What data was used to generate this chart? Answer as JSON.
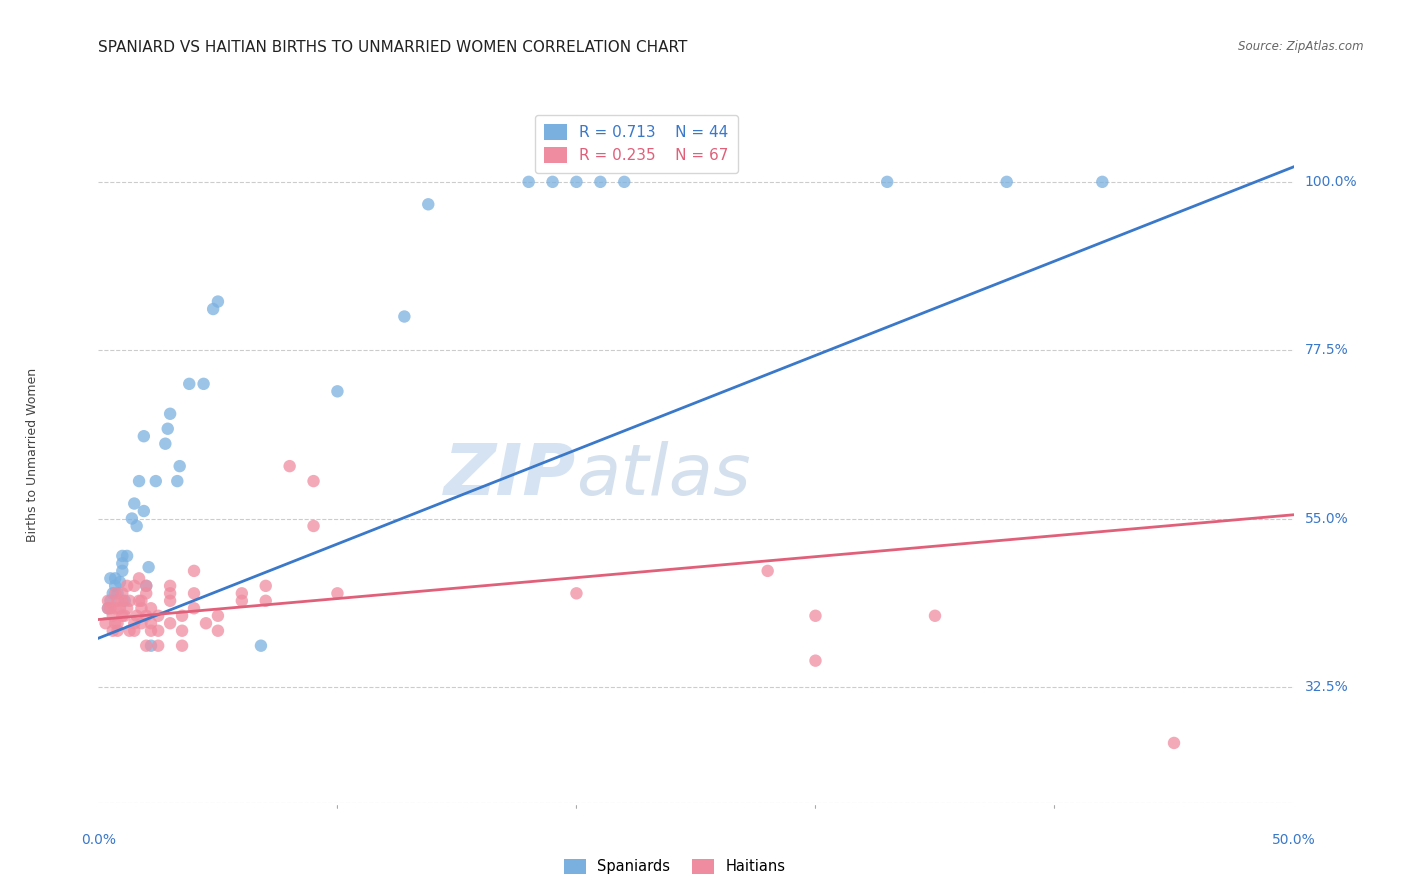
{
  "title": "SPANIARD VS HAITIAN BIRTHS TO UNMARRIED WOMEN CORRELATION CHART",
  "source": "Source: ZipAtlas.com",
  "ylabel": "Births to Unmarried Women",
  "ytick_labels": [
    "32.5%",
    "55.0%",
    "77.5%",
    "100.0%"
  ],
  "ytick_values": [
    0.325,
    0.55,
    0.775,
    1.0
  ],
  "xtick_labels": [
    "0.0%",
    "50.0%"
  ],
  "xtick_values": [
    0.0,
    0.5
  ],
  "xlim": [
    0.0,
    0.5
  ],
  "ylim": [
    0.17,
    1.1
  ],
  "legend_blue_r": "R = 0.713",
  "legend_blue_n": "N = 44",
  "legend_pink_r": "R = 0.235",
  "legend_pink_n": "N = 67",
  "legend_label_blue": "Spaniards",
  "legend_label_pink": "Haitians",
  "blue_color": "#7ab0e0",
  "pink_color": "#f08ca0",
  "blue_line_color": "#3a78c9",
  "pink_line_color": "#e0607a",
  "watermark_zip": "ZIP",
  "watermark_atlas": "atlas",
  "grid_color": "#cccccc",
  "bg_color": "#ffffff",
  "title_fontsize": 11,
  "axis_label_fontsize": 9,
  "tick_fontsize": 10,
  "marker_size": 80,
  "line_width": 2.0,
  "blue_line_x": [
    0.0,
    0.5
  ],
  "blue_line_y": [
    0.39,
    1.02
  ],
  "pink_line_x": [
    0.0,
    0.5
  ],
  "pink_line_y": [
    0.415,
    0.555
  ],
  "spaniard_points": [
    [
      0.004,
      0.43
    ],
    [
      0.005,
      0.44
    ],
    [
      0.005,
      0.47
    ],
    [
      0.006,
      0.45
    ],
    [
      0.007,
      0.46
    ],
    [
      0.007,
      0.47
    ],
    [
      0.008,
      0.45
    ],
    [
      0.009,
      0.465
    ],
    [
      0.01,
      0.48
    ],
    [
      0.01,
      0.5
    ],
    [
      0.01,
      0.49
    ],
    [
      0.011,
      0.44
    ],
    [
      0.012,
      0.5
    ],
    [
      0.014,
      0.55
    ],
    [
      0.015,
      0.57
    ],
    [
      0.016,
      0.54
    ],
    [
      0.017,
      0.6
    ],
    [
      0.019,
      0.56
    ],
    [
      0.019,
      0.66
    ],
    [
      0.02,
      0.46
    ],
    [
      0.021,
      0.485
    ],
    [
      0.022,
      0.38
    ],
    [
      0.024,
      0.6
    ],
    [
      0.028,
      0.65
    ],
    [
      0.029,
      0.67
    ],
    [
      0.03,
      0.69
    ],
    [
      0.033,
      0.6
    ],
    [
      0.034,
      0.62
    ],
    [
      0.038,
      0.73
    ],
    [
      0.044,
      0.73
    ],
    [
      0.048,
      0.83
    ],
    [
      0.05,
      0.84
    ],
    [
      0.068,
      0.38
    ],
    [
      0.1,
      0.72
    ],
    [
      0.128,
      0.82
    ],
    [
      0.138,
      0.97
    ],
    [
      0.18,
      1.0
    ],
    [
      0.19,
      1.0
    ],
    [
      0.2,
      1.0
    ],
    [
      0.21,
      1.0
    ],
    [
      0.22,
      1.0
    ],
    [
      0.33,
      1.0
    ],
    [
      0.38,
      1.0
    ],
    [
      0.42,
      1.0
    ]
  ],
  "haitian_points": [
    [
      0.003,
      0.41
    ],
    [
      0.004,
      0.43
    ],
    [
      0.004,
      0.44
    ],
    [
      0.005,
      0.43
    ],
    [
      0.006,
      0.4
    ],
    [
      0.006,
      0.42
    ],
    [
      0.007,
      0.41
    ],
    [
      0.007,
      0.43
    ],
    [
      0.007,
      0.45
    ],
    [
      0.008,
      0.4
    ],
    [
      0.008,
      0.41
    ],
    [
      0.008,
      0.44
    ],
    [
      0.009,
      0.43
    ],
    [
      0.01,
      0.42
    ],
    [
      0.01,
      0.44
    ],
    [
      0.01,
      0.45
    ],
    [
      0.011,
      0.42
    ],
    [
      0.012,
      0.43
    ],
    [
      0.012,
      0.46
    ],
    [
      0.013,
      0.4
    ],
    [
      0.013,
      0.44
    ],
    [
      0.015,
      0.4
    ],
    [
      0.015,
      0.41
    ],
    [
      0.015,
      0.46
    ],
    [
      0.016,
      0.42
    ],
    [
      0.017,
      0.44
    ],
    [
      0.017,
      0.47
    ],
    [
      0.018,
      0.41
    ],
    [
      0.018,
      0.43
    ],
    [
      0.018,
      0.44
    ],
    [
      0.02,
      0.38
    ],
    [
      0.02,
      0.42
    ],
    [
      0.02,
      0.45
    ],
    [
      0.02,
      0.46
    ],
    [
      0.022,
      0.4
    ],
    [
      0.022,
      0.41
    ],
    [
      0.022,
      0.43
    ],
    [
      0.025,
      0.38
    ],
    [
      0.025,
      0.4
    ],
    [
      0.025,
      0.42
    ],
    [
      0.03,
      0.41
    ],
    [
      0.03,
      0.44
    ],
    [
      0.03,
      0.45
    ],
    [
      0.03,
      0.46
    ],
    [
      0.035,
      0.38
    ],
    [
      0.035,
      0.4
    ],
    [
      0.035,
      0.42
    ],
    [
      0.04,
      0.43
    ],
    [
      0.04,
      0.45
    ],
    [
      0.04,
      0.48
    ],
    [
      0.045,
      0.41
    ],
    [
      0.05,
      0.4
    ],
    [
      0.05,
      0.42
    ],
    [
      0.06,
      0.44
    ],
    [
      0.06,
      0.45
    ],
    [
      0.07,
      0.44
    ],
    [
      0.07,
      0.46
    ],
    [
      0.08,
      0.62
    ],
    [
      0.09,
      0.54
    ],
    [
      0.09,
      0.6
    ],
    [
      0.1,
      0.45
    ],
    [
      0.2,
      0.45
    ],
    [
      0.28,
      0.48
    ],
    [
      0.3,
      0.36
    ],
    [
      0.3,
      0.42
    ],
    [
      0.35,
      0.42
    ],
    [
      0.45,
      0.25
    ]
  ]
}
